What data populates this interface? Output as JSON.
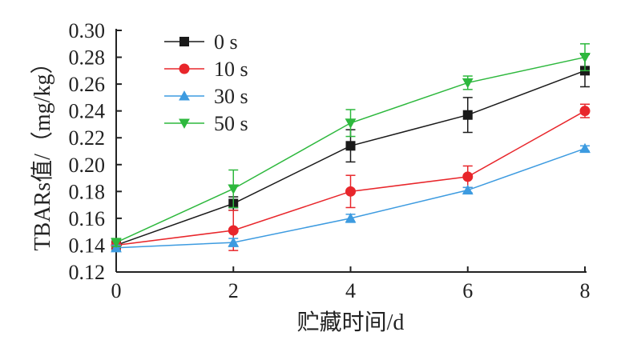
{
  "chart_data": {
    "type": "line",
    "xlabel": "贮藏时间/d",
    "ylabel": "TBARs值/（mg/kg）",
    "xlim": [
      0,
      8
    ],
    "ylim": [
      0.12,
      0.3
    ],
    "xticks": [
      0,
      2,
      4,
      6,
      8
    ],
    "yticks": [
      0.12,
      0.14,
      0.16,
      0.18,
      0.2,
      0.22,
      0.24,
      0.26,
      0.28,
      0.3
    ],
    "x_tick_labels": [
      "0",
      "2",
      "4",
      "6",
      "8"
    ],
    "y_tick_labels": [
      "0.12",
      "0.14",
      "0.16",
      "0.18",
      "0.20",
      "0.22",
      "0.24",
      "0.26",
      "0.28",
      "0.30"
    ],
    "grid": false,
    "legend_position": "top-left",
    "x": [
      0,
      2,
      4,
      6,
      8
    ],
    "series": [
      {
        "name": "0 s",
        "color": "#1a1a1a",
        "marker": "square",
        "values": [
          0.14,
          0.171,
          0.214,
          0.237,
          0.27
        ],
        "errors": [
          0.003,
          0.005,
          0.012,
          0.013,
          0.012
        ]
      },
      {
        "name": "10 s",
        "color": "#e8262b",
        "marker": "circle",
        "values": [
          0.14,
          0.151,
          0.18,
          0.191,
          0.24
        ],
        "errors": [
          0.003,
          0.015,
          0.012,
          0.008,
          0.005
        ]
      },
      {
        "name": "30 s",
        "color": "#3d9be0",
        "marker": "triangle-up",
        "values": [
          0.138,
          0.142,
          0.16,
          0.181,
          0.212
        ],
        "errors": [
          0.002,
          0.003,
          0.003,
          0.002,
          0.002
        ]
      },
      {
        "name": "50 s",
        "color": "#2db83d",
        "marker": "triangle-down",
        "values": [
          0.142,
          0.182,
          0.231,
          0.261,
          0.28
        ],
        "errors": [
          0.003,
          0.014,
          0.01,
          0.005,
          0.01
        ]
      }
    ]
  }
}
